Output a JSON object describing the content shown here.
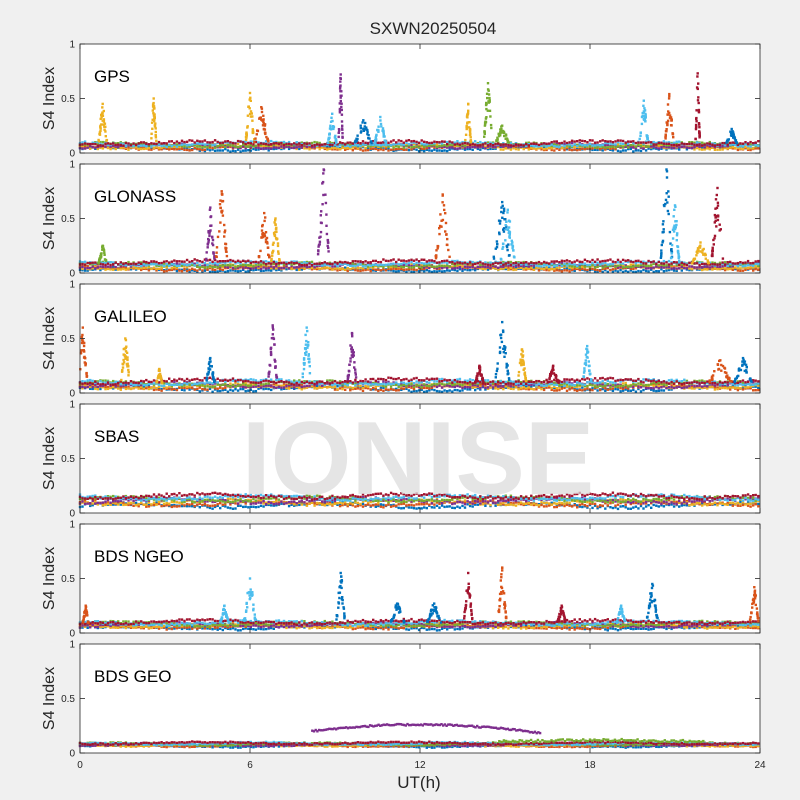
{
  "figure": {
    "title": "SXWN20250504",
    "xlabel": "UT(h)",
    "ylabel": "S4 Index",
    "watermark": "IONISE"
  },
  "chart_data": {
    "type": "scatter",
    "title": "SXWN20250504",
    "xlabel": "UT(h)",
    "ylabel": "S4 Index",
    "xlim": [
      0,
      24
    ],
    "ylim": [
      0,
      1
    ],
    "x_ticks": [
      0,
      6,
      12,
      18,
      24
    ],
    "x_tick_labels": [
      "0",
      "6",
      "12",
      "18",
      "24"
    ],
    "y_ticks": [
      0,
      0.5,
      1
    ],
    "y_tick_labels": [
      "0",
      "0.5",
      "1"
    ],
    "grid": false,
    "colors": [
      "#0072bd",
      "#d95319",
      "#edb120",
      "#7e2f8e",
      "#77ac30",
      "#4dbeee",
      "#a2142f"
    ],
    "panels": [
      {
        "label": "GPS",
        "baseline": 0.07,
        "baseline_noise": 0.025,
        "baseline_band": 0.06,
        "spikes": [
          {
            "t": 0.8,
            "peak": 0.45,
            "width": 0.3,
            "color": 2
          },
          {
            "t": 2.6,
            "peak": 0.5,
            "width": 0.2,
            "color": 2
          },
          {
            "t": 6.0,
            "peak": 0.55,
            "width": 0.3,
            "color": 2
          },
          {
            "t": 6.4,
            "peak": 0.42,
            "width": 0.5,
            "color": 1
          },
          {
            "t": 8.9,
            "peak": 0.36,
            "width": 0.3,
            "color": 5
          },
          {
            "t": 9.2,
            "peak": 0.72,
            "width": 0.15,
            "color": 3
          },
          {
            "t": 10.0,
            "peak": 0.3,
            "width": 0.6,
            "color": 0
          },
          {
            "t": 10.6,
            "peak": 0.33,
            "width": 0.4,
            "color": 5
          },
          {
            "t": 13.7,
            "peak": 0.45,
            "width": 0.2,
            "color": 2
          },
          {
            "t": 14.4,
            "peak": 0.64,
            "width": 0.3,
            "color": 4
          },
          {
            "t": 14.9,
            "peak": 0.25,
            "width": 0.5,
            "color": 4
          },
          {
            "t": 19.9,
            "peak": 0.48,
            "width": 0.3,
            "color": 5
          },
          {
            "t": 20.8,
            "peak": 0.54,
            "width": 0.3,
            "color": 1
          },
          {
            "t": 21.8,
            "peak": 0.73,
            "width": 0.15,
            "color": 6
          },
          {
            "t": 23.0,
            "peak": 0.22,
            "width": 0.4,
            "color": 0
          }
        ]
      },
      {
        "label": "GLONASS",
        "baseline": 0.07,
        "baseline_noise": 0.025,
        "baseline_band": 0.08,
        "spikes": [
          {
            "t": 0.8,
            "peak": 0.25,
            "width": 0.3,
            "color": 4
          },
          {
            "t": 4.6,
            "peak": 0.6,
            "width": 0.3,
            "color": 3
          },
          {
            "t": 5.0,
            "peak": 0.75,
            "width": 0.4,
            "color": 1
          },
          {
            "t": 6.5,
            "peak": 0.55,
            "width": 0.4,
            "color": 1
          },
          {
            "t": 6.9,
            "peak": 0.5,
            "width": 0.3,
            "color": 2
          },
          {
            "t": 8.6,
            "peak": 0.95,
            "width": 0.4,
            "color": 3
          },
          {
            "t": 12.8,
            "peak": 0.72,
            "width": 0.5,
            "color": 1
          },
          {
            "t": 14.9,
            "peak": 0.65,
            "width": 0.6,
            "color": 0
          },
          {
            "t": 15.1,
            "peak": 0.58,
            "width": 0.5,
            "color": 5
          },
          {
            "t": 20.7,
            "peak": 0.95,
            "width": 0.4,
            "color": 0
          },
          {
            "t": 21.0,
            "peak": 0.62,
            "width": 0.3,
            "color": 5
          },
          {
            "t": 21.9,
            "peak": 0.28,
            "width": 0.6,
            "color": 2
          },
          {
            "t": 22.5,
            "peak": 0.78,
            "width": 0.4,
            "color": 6
          }
        ]
      },
      {
        "label": "GALILEO",
        "baseline": 0.08,
        "baseline_noise": 0.03,
        "baseline_band": 0.08,
        "spikes": [
          {
            "t": 0.1,
            "peak": 0.6,
            "width": 0.3,
            "color": 1
          },
          {
            "t": 1.6,
            "peak": 0.5,
            "width": 0.3,
            "color": 2
          },
          {
            "t": 2.8,
            "peak": 0.22,
            "width": 0.2,
            "color": 2
          },
          {
            "t": 4.6,
            "peak": 0.32,
            "width": 0.3,
            "color": 0
          },
          {
            "t": 6.8,
            "peak": 0.62,
            "width": 0.3,
            "color": 3
          },
          {
            "t": 8.0,
            "peak": 0.6,
            "width": 0.3,
            "color": 5
          },
          {
            "t": 9.6,
            "peak": 0.55,
            "width": 0.3,
            "color": 3
          },
          {
            "t": 14.1,
            "peak": 0.25,
            "width": 0.3,
            "color": 6
          },
          {
            "t": 14.9,
            "peak": 0.65,
            "width": 0.5,
            "color": 0
          },
          {
            "t": 15.6,
            "peak": 0.4,
            "width": 0.3,
            "color": 2
          },
          {
            "t": 16.7,
            "peak": 0.25,
            "width": 0.4,
            "color": 6
          },
          {
            "t": 17.9,
            "peak": 0.43,
            "width": 0.3,
            "color": 5
          },
          {
            "t": 22.6,
            "peak": 0.3,
            "width": 0.8,
            "color": 1
          },
          {
            "t": 23.4,
            "peak": 0.32,
            "width": 0.6,
            "color": 0
          }
        ]
      },
      {
        "label": "SBAS",
        "baseline": 0.12,
        "baseline_noise": 0.03,
        "baseline_band": 0.1,
        "spikes": []
      },
      {
        "label": "BDS NGEO",
        "baseline": 0.08,
        "baseline_noise": 0.025,
        "baseline_band": 0.06,
        "spikes": [
          {
            "t": 0.2,
            "peak": 0.25,
            "width": 0.2,
            "color": 1
          },
          {
            "t": 5.1,
            "peak": 0.25,
            "width": 0.3,
            "color": 5
          },
          {
            "t": 6.0,
            "peak": 0.5,
            "width": 0.4,
            "color": 5
          },
          {
            "t": 9.2,
            "peak": 0.55,
            "width": 0.3,
            "color": 0
          },
          {
            "t": 11.2,
            "peak": 0.27,
            "width": 0.5,
            "color": 0
          },
          {
            "t": 12.5,
            "peak": 0.27,
            "width": 0.5,
            "color": 0
          },
          {
            "t": 13.7,
            "peak": 0.55,
            "width": 0.3,
            "color": 6
          },
          {
            "t": 14.9,
            "peak": 0.6,
            "width": 0.3,
            "color": 1
          },
          {
            "t": 17.0,
            "peak": 0.25,
            "width": 0.3,
            "color": 6
          },
          {
            "t": 19.1,
            "peak": 0.25,
            "width": 0.3,
            "color": 5
          },
          {
            "t": 20.2,
            "peak": 0.45,
            "width": 0.4,
            "color": 0
          },
          {
            "t": 23.8,
            "peak": 0.42,
            "width": 0.3,
            "color": 1
          }
        ]
      },
      {
        "label": "BDS GEO",
        "baseline": 0.08,
        "baseline_noise": 0.015,
        "baseline_band": 0.03,
        "spikes": [],
        "arc": {
          "t_start": 8.2,
          "t_end": 16.3,
          "start": 0.2,
          "peak": 0.28,
          "end": 0.18,
          "color": 3
        },
        "bump": {
          "t_start": 14.8,
          "t_end": 22.0,
          "level": 0.12,
          "color": 4
        }
      }
    ]
  }
}
